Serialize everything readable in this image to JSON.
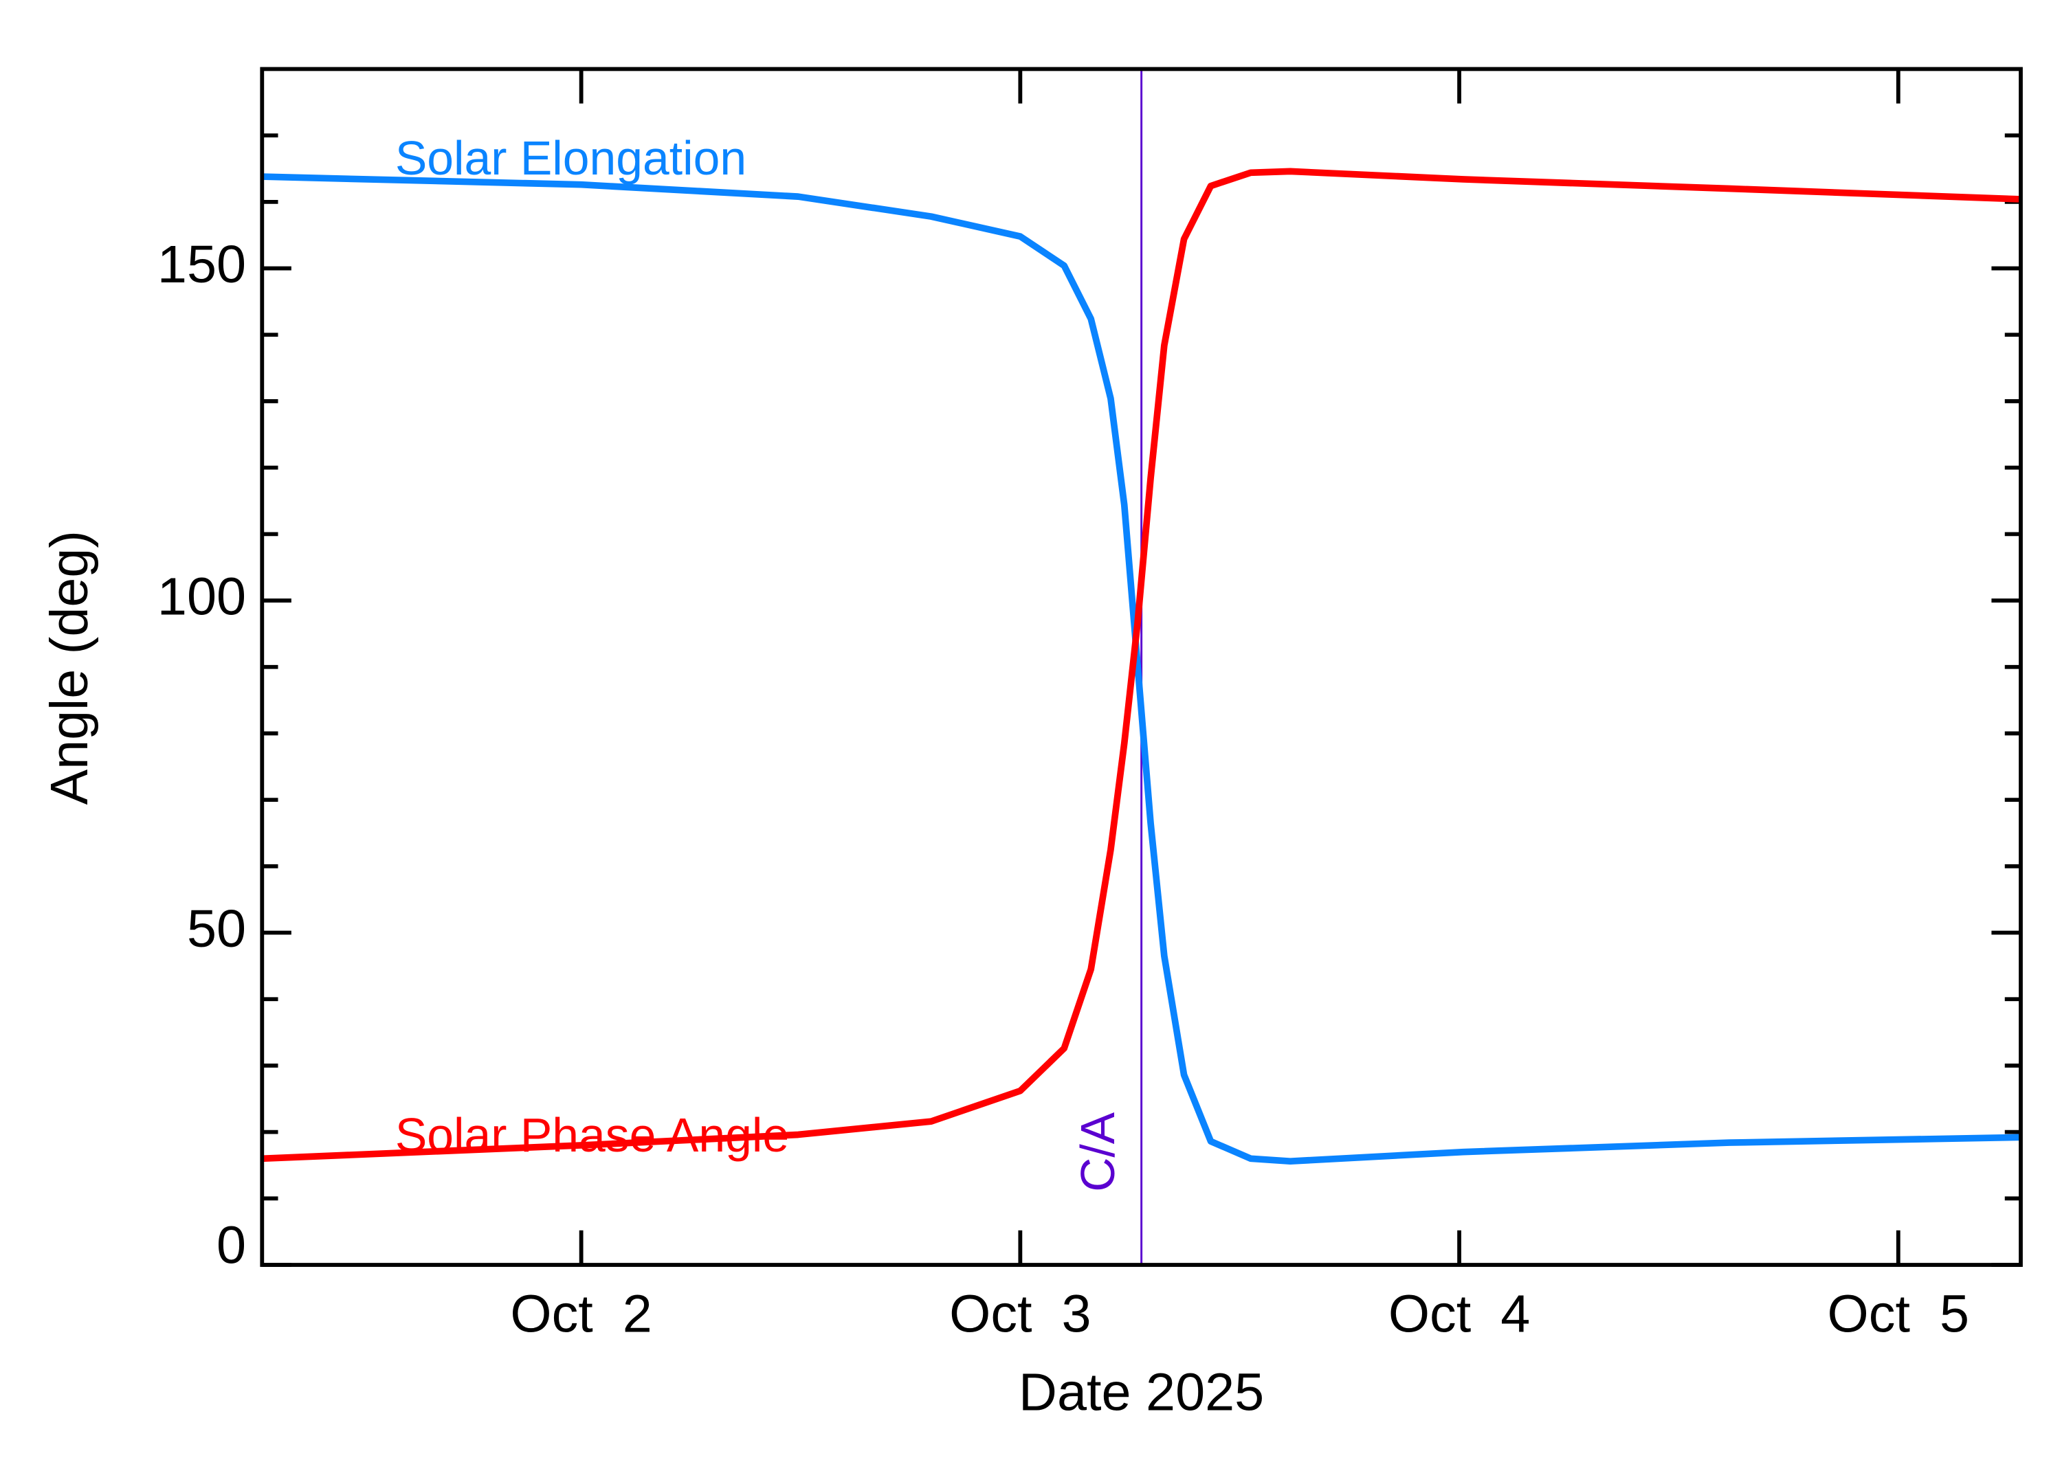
{
  "chart_data": {
    "type": "line",
    "xlabel": "Date 2025",
    "ylabel": "Angle (deg)",
    "x": [
      1.273,
      2.0,
      2.494,
      2.797,
      3.0,
      3.1,
      3.161,
      3.206,
      3.237,
      3.267,
      3.297,
      3.328,
      3.373,
      3.434,
      3.525,
      3.615,
      4.009,
      4.615,
      5.279
    ],
    "series": [
      {
        "name": "Solar Elongation",
        "color": "#0a84ff",
        "values": [
          163.8,
          162.6,
          160.8,
          157.8,
          154.8,
          150.4,
          142.4,
          130.4,
          114.4,
          90.5,
          66.5,
          46.5,
          28.6,
          18.6,
          16.0,
          15.6,
          17.0,
          18.4,
          19.2
        ]
      },
      {
        "name": "Solar Phase Angle",
        "color": "#ff0000",
        "values": [
          16.0,
          18.0,
          19.6,
          21.6,
          26.2,
          32.6,
          44.5,
          62.5,
          78.5,
          96.5,
          118.4,
          138.4,
          154.4,
          162.4,
          164.4,
          164.6,
          163.4,
          162.0,
          160.4
        ]
      }
    ],
    "annotations": [
      {
        "text": "C/A",
        "x": 3.276,
        "color": "#5a00d0"
      }
    ],
    "xlim": [
      1.273,
      5.279
    ],
    "xticks": [
      {
        "value": 2,
        "label": "Oct  2"
      },
      {
        "value": 3,
        "label": "Oct  3"
      },
      {
        "value": 4,
        "label": "Oct  4"
      },
      {
        "value": 5,
        "label": "Oct  5"
      }
    ],
    "ylim": [
      0,
      180
    ],
    "yticks": [
      0,
      50,
      100,
      150
    ],
    "yminorticks": [
      10,
      20,
      30,
      40,
      60,
      70,
      80,
      90,
      110,
      120,
      130,
      140,
      160,
      170
    ]
  }
}
